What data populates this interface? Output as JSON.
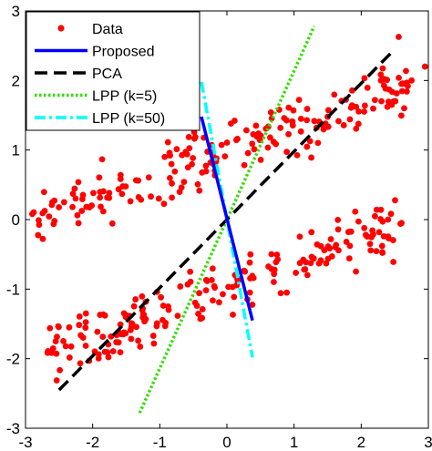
{
  "chart_data": {
    "type": "scatter",
    "title": "",
    "xlabel": "",
    "ylabel": "",
    "xlim": [
      -3,
      3
    ],
    "ylim": [
      -3,
      3
    ],
    "xticks": [
      "-3",
      "-2",
      "-1",
      "0",
      "1",
      "2",
      "3"
    ],
    "yticks": [
      "-3",
      "-2",
      "-1",
      "0",
      "1",
      "2",
      "3"
    ],
    "grid": false,
    "legend_position": "top-left",
    "scatter": {
      "name": "Data",
      "color": "#ff0000",
      "clusters": [
        {
          "direction": "upper",
          "seed": 7,
          "x_start": -2.9,
          "x_end": 2.7,
          "slope": 0.35,
          "offset": 0.98,
          "spread": 0.2,
          "count": 200,
          "extra_points": [
            [
              -2.9,
              0.08
            ],
            [
              -2.6,
              0.25
            ],
            [
              -2.3,
              0.18
            ],
            [
              2.95,
              2.2
            ],
            [
              2.75,
              2.0
            ],
            [
              2.6,
              1.95
            ]
          ]
        },
        {
          "direction": "lower",
          "seed": 13,
          "x_start": -2.7,
          "x_end": 2.6,
          "slope": 0.35,
          "offset": -1.0,
          "spread": 0.2,
          "count": 200,
          "extra_points": [
            [
              -2.55,
              -1.75
            ],
            [
              -2.35,
              -1.55
            ],
            [
              -2.1,
              -1.35
            ],
            [
              2.6,
              -0.05
            ],
            [
              2.4,
              0.0
            ]
          ]
        }
      ]
    },
    "series": [
      {
        "name": "Proposed",
        "color": "#0000ff",
        "dash": "solid",
        "x": [
          -0.38,
          0.38
        ],
        "y": [
          1.48,
          -1.45
        ]
      },
      {
        "name": "PCA",
        "color": "#000000",
        "dash": "dashed",
        "x": [
          -2.5,
          2.5
        ],
        "y": [
          -2.45,
          2.45
        ]
      },
      {
        "name": "LPP (k=5)",
        "color": "#33dd00",
        "dash": "dotted",
        "x": [
          -1.3,
          1.3
        ],
        "y": [
          -2.78,
          2.78
        ]
      },
      {
        "name": "LPP (k=50)",
        "color": "#00ffff",
        "dash": "dashdot",
        "x": [
          -0.38,
          0.38
        ],
        "y": [
          1.98,
          -1.98
        ]
      }
    ]
  }
}
